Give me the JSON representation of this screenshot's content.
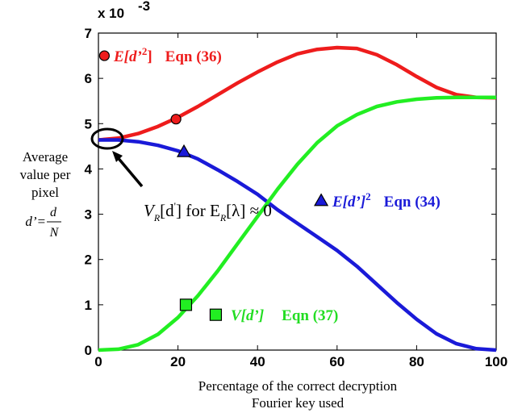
{
  "chart_data": {
    "type": "line",
    "xlim": [
      0,
      100
    ],
    "ylim": [
      0,
      7
    ],
    "x_ticks": [
      "0",
      "20",
      "40",
      "60",
      "80",
      "100"
    ],
    "y_ticks": [
      "0",
      "1",
      "2",
      "3",
      "4",
      "5",
      "6",
      "7"
    ],
    "y_multiplier": {
      "base": "x 10",
      "exponent": "-3"
    },
    "xlabel": [
      "Percentage of the correct decryption",
      "Fourier key used"
    ],
    "ylabel": [
      "Average",
      "value per",
      "pixel"
    ],
    "ylabel_formula": {
      "lhs": "d’=",
      "num": "d",
      "den": "N"
    },
    "grid": false,
    "series": [
      {
        "color": "#ee1c1c",
        "marker": "circle",
        "x": [
          0,
          5,
          10,
          15,
          20,
          25,
          30,
          35,
          40,
          45,
          50,
          55,
          60,
          65,
          70,
          75,
          80,
          85,
          90,
          95,
          100
        ],
        "y": [
          4.64,
          4.68,
          4.78,
          4.94,
          5.14,
          5.38,
          5.64,
          5.9,
          6.14,
          6.36,
          6.54,
          6.64,
          6.68,
          6.66,
          6.52,
          6.3,
          6.04,
          5.8,
          5.64,
          5.58,
          5.57
        ]
      },
      {
        "color": "#1a1ad8",
        "marker": "triangle",
        "x": [
          0,
          5,
          10,
          15,
          20,
          25,
          30,
          35,
          40,
          45,
          50,
          55,
          60,
          65,
          70,
          75,
          80,
          85,
          90,
          95,
          100
        ],
        "y": [
          4.64,
          4.64,
          4.6,
          4.52,
          4.4,
          4.22,
          3.98,
          3.72,
          3.44,
          3.1,
          2.8,
          2.5,
          2.2,
          1.85,
          1.45,
          1.05,
          0.68,
          0.36,
          0.14,
          0.03,
          0.0
        ]
      },
      {
        "color": "#22ee22",
        "marker": "square",
        "x": [
          0,
          5,
          10,
          15,
          20,
          25,
          30,
          35,
          40,
          45,
          50,
          55,
          60,
          65,
          70,
          75,
          80,
          85,
          90,
          95,
          100
        ],
        "y": [
          0.0,
          0.02,
          0.12,
          0.35,
          0.72,
          1.2,
          1.75,
          2.35,
          2.95,
          3.55,
          4.1,
          4.58,
          4.95,
          5.2,
          5.38,
          5.48,
          5.54,
          5.57,
          5.58,
          5.58,
          5.58
        ]
      }
    ],
    "markers": [
      {
        "series": 0,
        "shape": "circle",
        "x": 1.5,
        "y": 6.5
      },
      {
        "series": 0,
        "shape": "circle",
        "x": 19.5,
        "y": 5.1
      },
      {
        "series": 1,
        "shape": "triangle",
        "x": 21.5,
        "y": 4.38
      },
      {
        "series": 1,
        "shape": "triangle",
        "x": 56,
        "y": 3.3
      },
      {
        "series": 2,
        "shape": "square",
        "x": 22,
        "y": 1.0
      },
      {
        "series": 2,
        "shape": "square",
        "x": 29.5,
        "y": 0.78
      }
    ],
    "legend_labels": [
      {
        "series": 0,
        "main": "E[d’",
        "sup": "2",
        "close": "]",
        "eqn": "Eqn (36)"
      },
      {
        "series": 1,
        "main": "E[d’]",
        "sup": "2",
        "eqn": "Eqn (34)"
      },
      {
        "series": 2,
        "main": "V[d’]",
        "eqn": "Eqn (37)"
      }
    ],
    "annotation": {
      "text": "V",
      "sub": "R",
      "mid": "[d",
      "prime": "'",
      "mid2": "] for E",
      "sub2": "R",
      "tail": "[λ] ≈ 0"
    }
  }
}
